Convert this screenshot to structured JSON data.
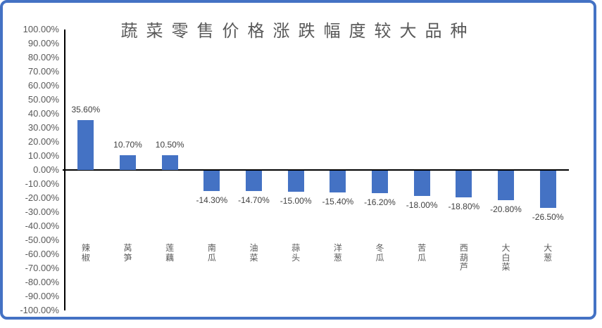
{
  "frame": {
    "border_color": "#4472C4",
    "background_color": "#ffffff"
  },
  "chart_data": {
    "type": "bar",
    "title": "蔬菜零售价格涨跌幅度较大品种",
    "categories": [
      "辣椒",
      "莴笋",
      "莲藕",
      "南瓜",
      "油菜",
      "蒜头",
      "洋葱",
      "冬瓜",
      "苦瓜",
      "西葫芦",
      "大白菜",
      "大葱"
    ],
    "values": [
      35.6,
      10.7,
      10.5,
      -14.3,
      -14.7,
      -15.0,
      -15.4,
      -16.2,
      -18.0,
      -18.8,
      -20.8,
      -26.5
    ],
    "value_labels": [
      "35.60%",
      "10.70%",
      "10.50%",
      "-14.30%",
      "-14.70%",
      "-15.00%",
      "-15.40%",
      "-16.20%",
      "-18.00%",
      "-18.80%",
      "-20.80%",
      "-26.50%"
    ],
    "ytick_labels": [
      "100.00%",
      "90.00%",
      "80.00%",
      "70.00%",
      "60.00%",
      "50.00%",
      "40.00%",
      "30.00%",
      "20.00%",
      "10.00%",
      "0.00%",
      "-10.00%",
      "-20.00%",
      "-30.00%",
      "-40.00%",
      "-50.00%",
      "-60.00%",
      "-70.00%",
      "-80.00%",
      "-90.00%",
      "-100.00%"
    ],
    "ylim": [
      -100,
      100
    ],
    "ytick_step": 10,
    "xlabel": "",
    "ylabel": "",
    "grid": false,
    "legend": null,
    "bar_color": "#4472C4",
    "axis_color": "#000000",
    "tick_label_color": "#595959",
    "value_label_color": "#404040",
    "title_color": "#595959"
  }
}
